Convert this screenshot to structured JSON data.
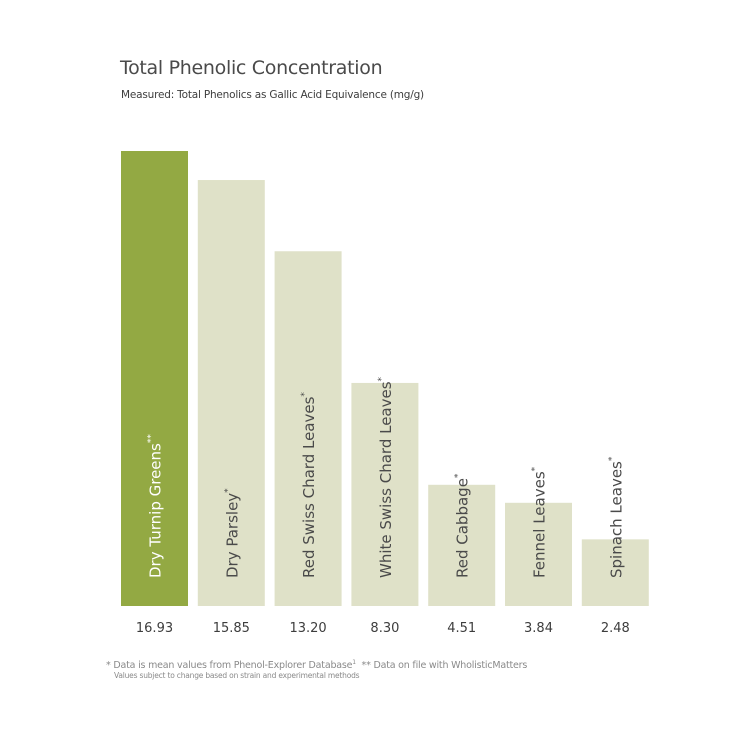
{
  "chart_data": {
    "type": "bar",
    "title": "Total Phenolic Concentration",
    "subtitle": "Measured: Total Phenolics as Gallic Acid Equivalence (mg/g)",
    "xlabel": "",
    "ylabel": "",
    "ylim": [
      0,
      17.5
    ],
    "grid": false,
    "categories": [
      "Dry Turnip Greens",
      "Dry Parsley",
      "Red Swiss Chard Leaves",
      "White Swiss Chard Leaves",
      "Red Cabbage",
      "Fennel Leaves",
      "Spinach Leaves"
    ],
    "markers": [
      "**",
      "*",
      "*",
      "*",
      "*",
      "*",
      "*"
    ],
    "values": [
      16.93,
      15.85,
      13.2,
      8.3,
      4.51,
      3.84,
      2.48
    ],
    "value_labels": [
      "16.93",
      "15.85",
      "13.20",
      "8.30",
      "4.51",
      "3.84",
      "2.48"
    ],
    "highlight_index": 0,
    "colors": {
      "highlight": "#93a943",
      "default": "#dfe1c8",
      "highlight_text": "#ffffff",
      "default_text": "#4a4a4a"
    }
  },
  "footnotes": {
    "line1_a": "* Data is mean values from Phenol-Explorer Database",
    "line1_sup": "1",
    "line1_b": "  ** Data on file with WholisticMatters",
    "line2": "Values subject to change based on strain and experimental methods"
  }
}
